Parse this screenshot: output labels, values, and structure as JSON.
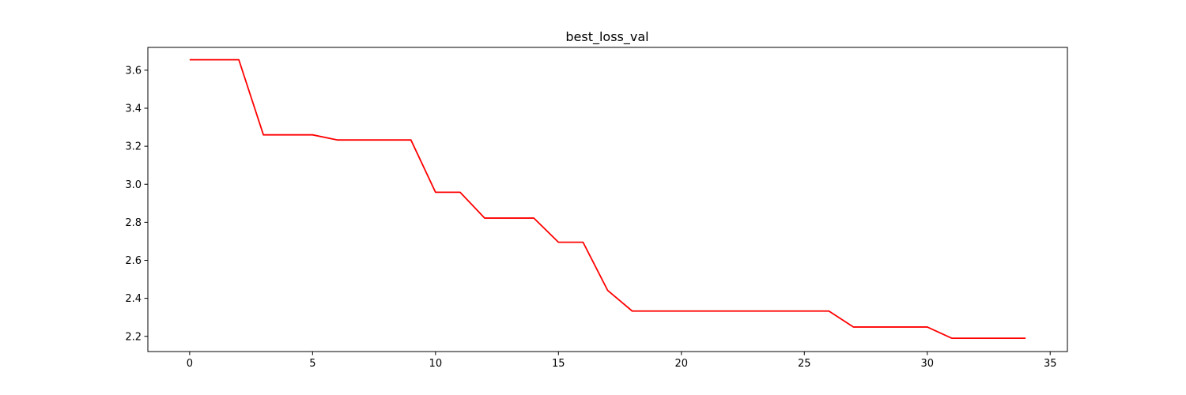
{
  "chart_data": {
    "type": "line",
    "title": "best_loss_val",
    "xlabel": "",
    "ylabel": "",
    "xlim": [
      -1.7,
      35.7
    ],
    "ylim": [
      2.12,
      3.72
    ],
    "xticks": [
      0,
      5,
      10,
      15,
      20,
      25,
      30,
      35
    ],
    "yticks": [
      2.2,
      2.4,
      2.6,
      2.8,
      3.0,
      3.2,
      3.4,
      3.6
    ],
    "xtick_labels": [
      "0",
      "5",
      "10",
      "15",
      "20",
      "25",
      "30",
      "35"
    ],
    "ytick_labels": [
      "2.2",
      "2.4",
      "2.6",
      "2.8",
      "3.0",
      "3.2",
      "3.4",
      "3.6"
    ],
    "grid": false,
    "series": [
      {
        "color": "#ff0000",
        "x": [
          0,
          1,
          2,
          3,
          4,
          5,
          6,
          7,
          8,
          9,
          10,
          11,
          12,
          13,
          14,
          15,
          16,
          17,
          18,
          19,
          20,
          21,
          22,
          23,
          24,
          25,
          26,
          27,
          28,
          29,
          30,
          31,
          32,
          33,
          34
        ],
        "values": [
          3.655,
          3.655,
          3.655,
          3.26,
          3.26,
          3.26,
          3.233,
          3.233,
          3.233,
          3.233,
          2.958,
          2.958,
          2.822,
          2.822,
          2.822,
          2.695,
          2.695,
          2.442,
          2.333,
          2.333,
          2.333,
          2.333,
          2.333,
          2.333,
          2.333,
          2.333,
          2.333,
          2.249,
          2.249,
          2.249,
          2.249,
          2.19,
          2.19,
          2.19,
          2.19
        ]
      }
    ]
  }
}
